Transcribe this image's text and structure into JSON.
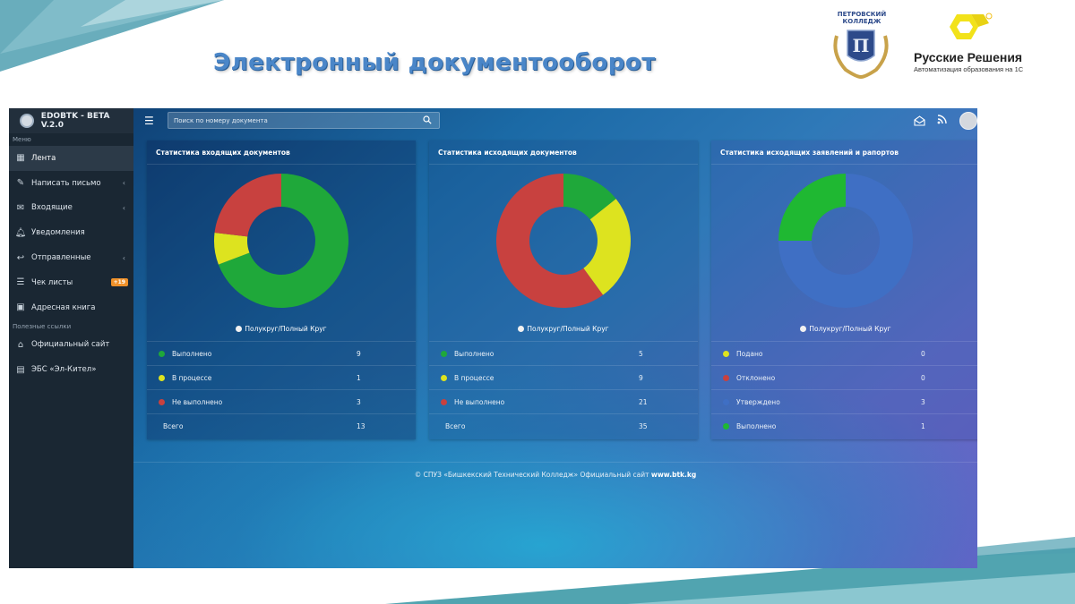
{
  "slide": {
    "title": "Электронный документооборот",
    "college_logo_text": "ПЕТРОВСКИЙ КОЛЛЕДЖ",
    "partner_name": "Русские Решения",
    "partner_subtitle": "Автоматизация образования на 1С",
    "colors": {
      "title": "#4a86c8",
      "partner_accent": "#f2e21a"
    }
  },
  "app": {
    "brand": "EDOBTK - BETA V.2.0",
    "search_placeholder": "Поиск по номеру документа",
    "sidebar": {
      "menu_caption": "Меню",
      "links_caption": "Полезные ссылки",
      "items": [
        {
          "label": "Лента",
          "icon": "dashboard-icon",
          "active": true
        },
        {
          "label": "Написать письмо",
          "icon": "edit-icon",
          "chevron": true
        },
        {
          "label": "Входящие",
          "icon": "envelope-icon",
          "chevron": true
        },
        {
          "label": "Уведомления",
          "icon": "bell-icon"
        },
        {
          "label": "Отправленные",
          "icon": "reply-icon",
          "chevron": true
        },
        {
          "label": "Чек листы",
          "icon": "list-icon",
          "badge": "+19"
        },
        {
          "label": "Адресная книга",
          "icon": "address-book-icon"
        }
      ],
      "links": [
        {
          "label": "Официальный сайт",
          "icon": "bank-icon"
        },
        {
          "label": "ЭБС «Эл-Кител»",
          "icon": "book-icon"
        }
      ]
    },
    "toggle_label": "Полукруг/Полный Круг",
    "cards": [
      {
        "title": "Статистика входящих документов",
        "rows": [
          {
            "label": "Выполнено",
            "value": 9,
            "color": "#1fa83a"
          },
          {
            "label": "В процессе",
            "value": 1,
            "color": "#dde31f"
          },
          {
            "label": "Не выполнено",
            "value": 3,
            "color": "#c8413f"
          }
        ],
        "total_label": "Всего",
        "total": 13
      },
      {
        "title": "Статистика исходящих документов",
        "rows": [
          {
            "label": "Выполнено",
            "value": 5,
            "color": "#1fa83a"
          },
          {
            "label": "В процессе",
            "value": 9,
            "color": "#dde31f"
          },
          {
            "label": "Не выполнено",
            "value": 21,
            "color": "#c8413f"
          }
        ],
        "total_label": "Всего",
        "total": 35
      },
      {
        "title": "Статистика исходящих заявлений и рапортов",
        "rows": [
          {
            "label": "Подано",
            "value": 0,
            "color": "#dde31f"
          },
          {
            "label": "Отклонено",
            "value": 0,
            "color": "#c8413f"
          },
          {
            "label": "Утверждено",
            "value": 3,
            "color": "#3f6fc4"
          },
          {
            "label": "Выполнено",
            "value": 1,
            "color": "#1fb832"
          }
        ]
      }
    ],
    "footer": {
      "text": "© СПУЗ «Бишкекский Технический Колледж» Официальный сайт",
      "site": "www.btk.kg"
    }
  },
  "chart_data": [
    {
      "type": "pie",
      "categories": [
        "Выполнено",
        "В процессе",
        "Не выполнено"
      ],
      "values": [
        9,
        1,
        3
      ],
      "title": "Статистика входящих документов"
    },
    {
      "type": "pie",
      "categories": [
        "Выполнено",
        "В процессе",
        "Не выполнено"
      ],
      "values": [
        5,
        9,
        21
      ],
      "title": "Статистика исходящих документов"
    },
    {
      "type": "pie",
      "categories": [
        "Подано",
        "Отклонено",
        "Утверждено",
        "Выполнено"
      ],
      "values": [
        0,
        0,
        3,
        1
      ],
      "title": "Статистика исходящих заявлений и рапортов"
    }
  ]
}
